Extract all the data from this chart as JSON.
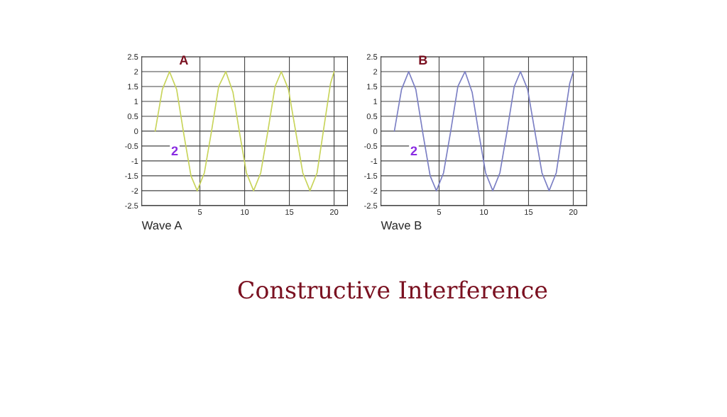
{
  "chart_data": [
    {
      "type": "line",
      "title": "Wave A",
      "x": [
        0,
        0.8,
        1.6,
        2.4,
        3.2,
        4,
        4.7,
        5.5,
        6.3,
        7.1,
        7.9,
        8.7,
        9.4,
        10.2,
        11,
        11.8,
        12.6,
        13.4,
        14.1,
        14.9,
        15.7,
        16.5,
        17.3,
        18.1,
        18.8,
        19.6,
        20
      ],
      "series": [
        {
          "color": "#c8d45a",
          "values": [
            0,
            1.4,
            2,
            1.4,
            -0.1,
            -1.5,
            -2,
            -1.4,
            0,
            1.5,
            2,
            1.3,
            0,
            -1.4,
            -2,
            -1.4,
            0,
            1.5,
            2,
            1.4,
            0,
            -1.4,
            -2,
            -1.4,
            0,
            1.6,
            2
          ]
        }
      ],
      "xlim": [
        -1.5,
        21.5
      ],
      "ylim": [
        -2.5,
        2.5
      ],
      "xticks": [
        5,
        10,
        15,
        20
      ],
      "yticks": [
        -2.5,
        -2,
        -1.5,
        -1,
        -0.5,
        0,
        0.5,
        1,
        1.5,
        2,
        2.5
      ],
      "grid": true,
      "legend": false,
      "marker": "none",
      "line_style": "solid",
      "annotations": [
        {
          "text": "A",
          "x": 2,
          "y": 2
        },
        "2"
      ]
    },
    {
      "type": "line",
      "title": "Wave B",
      "x": [
        0,
        0.8,
        1.6,
        2.4,
        3.2,
        4,
        4.7,
        5.5,
        6.3,
        7.1,
        7.9,
        8.7,
        9.4,
        10.2,
        11,
        11.8,
        12.6,
        13.4,
        14.1,
        14.9,
        15.7,
        16.5,
        17.3,
        18.1,
        18.8,
        19.6,
        20
      ],
      "series": [
        {
          "color": "#7b7fc4",
          "values": [
            0,
            1.4,
            2,
            1.4,
            -0.1,
            -1.5,
            -2,
            -1.4,
            0,
            1.5,
            2,
            1.3,
            0,
            -1.4,
            -2,
            -1.4,
            0,
            1.5,
            2,
            1.4,
            0,
            -1.4,
            -2,
            -1.4,
            0,
            1.6,
            2
          ]
        }
      ],
      "xlim": [
        -1.5,
        21.5
      ],
      "ylim": [
        -2.5,
        2.5
      ],
      "xticks": [
        5,
        10,
        15,
        20
      ],
      "yticks": [
        -2.5,
        -2,
        -1.5,
        -1,
        -0.5,
        0,
        0.5,
        1,
        1.5,
        2,
        2.5
      ],
      "grid": true,
      "legend": false,
      "marker": "none",
      "line_style": "solid",
      "annotations": [
        {
          "text": "B",
          "x": 2,
          "y": 2
        },
        "2",
        "Constructive Interference"
      ]
    }
  ]
}
